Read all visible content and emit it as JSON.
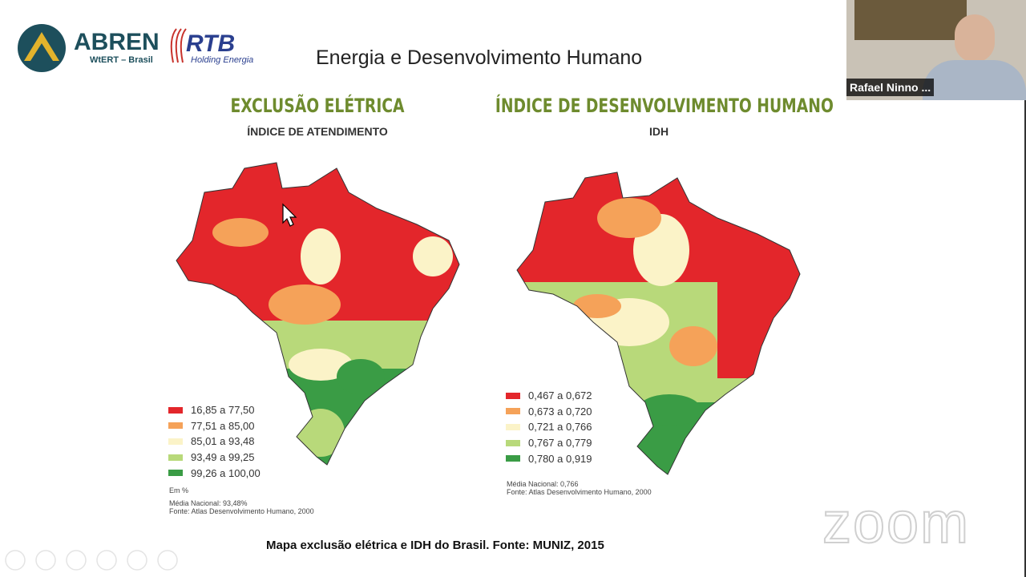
{
  "logos": {
    "abren": "ABREN",
    "abren_sub": "WtERT – Brasil",
    "rtb": "RTB",
    "rtb_sub": "Holding Energia"
  },
  "slide": {
    "title": "Energia e Desenvolvimento Humano",
    "caption": "Mapa exclusão elétrica e IDH do Brasil. Fonte: MUNIZ, 2015"
  },
  "maps": [
    {
      "title": "EXCLUSÃO ELÉTRICA",
      "subtitle": "ÍNDICE DE ATENDIMENTO",
      "legend": [
        {
          "label": "16,85 a 77,50",
          "color": "#e3262b"
        },
        {
          "label": "77,51 a 85,00",
          "color": "#f5a259"
        },
        {
          "label": "85,01 a 93,48",
          "color": "#fbf3c8"
        },
        {
          "label": "93,49 a 99,25",
          "color": "#b8d97a"
        },
        {
          "label": "99,26 a 100,00",
          "color": "#3a9c45"
        }
      ],
      "notes": [
        "Em %",
        "Média Nacional: 93,48%",
        "Fonte: Atlas Desenvolvimento Humano, 2000"
      ]
    },
    {
      "title": "ÍNDICE DE DESENVOLVIMENTO HUMANO",
      "subtitle": "IDH",
      "legend": [
        {
          "label": "0,467 a 0,672",
          "color": "#e3262b"
        },
        {
          "label": "0,673 a 0,720",
          "color": "#f5a259"
        },
        {
          "label": "0,721 a 0,766",
          "color": "#fbf3c8"
        },
        {
          "label": "0,767 a 0,779",
          "color": "#b8d97a"
        },
        {
          "label": "0,780 a 0,919",
          "color": "#3a9c45"
        }
      ],
      "notes": [
        "Média Nacional: 0,766",
        "Fonte: Atlas Desenvolvimento Humano, 2000"
      ]
    }
  ],
  "video": {
    "participant": "Rafael Ninno ..."
  },
  "watermark": "zoom"
}
